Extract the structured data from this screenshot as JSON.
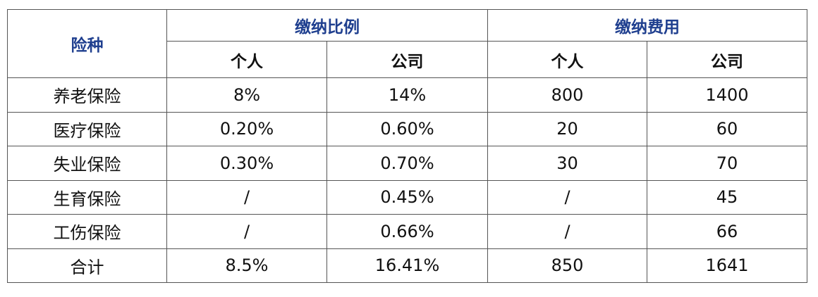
{
  "colors": {
    "header_blue": "#1f3f8f",
    "border": "#555555",
    "text": "#111111"
  },
  "header": {
    "type_label": "险种",
    "group_ratio": "缴纳比例",
    "group_fee": "缴纳费用",
    "sub": [
      "个人",
      "公司",
      "个人",
      "公司"
    ]
  },
  "rows": [
    {
      "name": "养老保险",
      "cells": [
        "8%",
        "14%",
        "800",
        "1400"
      ]
    },
    {
      "name": "医疗保险",
      "cells": [
        "0.20%",
        "0.60%",
        "20",
        "60"
      ]
    },
    {
      "name": "失业保险",
      "cells": [
        "0.30%",
        "0.70%",
        "30",
        "70"
      ]
    },
    {
      "name": "生育保险",
      "cells": [
        "/",
        "0.45%",
        "/",
        "45"
      ]
    },
    {
      "name": "工伤保险",
      "cells": [
        "/",
        "0.66%",
        "/",
        "66"
      ]
    },
    {
      "name": "合计",
      "cells": [
        "8.5%",
        "16.41%",
        "850",
        "1641"
      ]
    }
  ]
}
